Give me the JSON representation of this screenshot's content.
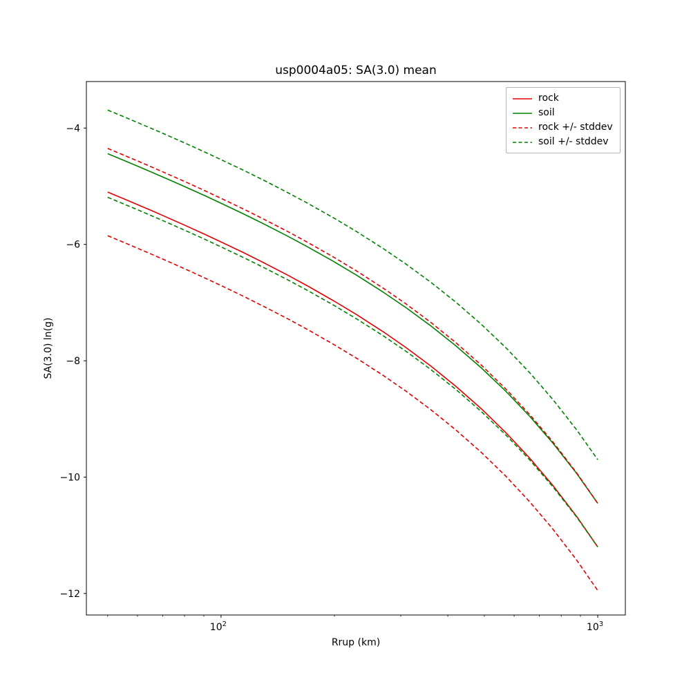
{
  "figure": {
    "title": "usp0004a05: SA(3.0) mean",
    "xlabel": "Rrup (km)",
    "ylabel": "SA(3.0) ln(g)"
  },
  "axes": {
    "y_ticks": [
      {
        "value": -4,
        "label": "−4"
      },
      {
        "value": -6,
        "label": "−6"
      },
      {
        "value": -8,
        "label": "−8"
      },
      {
        "value": -10,
        "label": "−10"
      },
      {
        "value": -12,
        "label": "−12"
      }
    ],
    "x_major_ticks": [
      {
        "value": 100,
        "mantissa": "10",
        "exponent": "2"
      },
      {
        "value": 1000,
        "mantissa": "10",
        "exponent": "3"
      }
    ],
    "x_minor_ticks": [
      50,
      60,
      70,
      80,
      90,
      200,
      300,
      400,
      500,
      600,
      700,
      800,
      900
    ]
  },
  "legend": {
    "entries": [
      {
        "label": "rock",
        "color": "#e00000",
        "dash": false
      },
      {
        "label": "soil",
        "color": "#008000",
        "dash": false
      },
      {
        "label": "rock +/- stddev",
        "color": "#e00000",
        "dash": true
      },
      {
        "label": "soil +/- stddev",
        "color": "#008000",
        "dash": true
      }
    ]
  },
  "chart_data": {
    "type": "line",
    "title": "usp0004a05: SA(3.0) mean",
    "xlabel": "Rrup (km)",
    "ylabel": "SA(3.0) ln(g)",
    "x_scale": "log",
    "xlim": [
      43.9,
      1184
    ],
    "ylim": [
      -12.37,
      -3.2
    ],
    "grid": false,
    "legend_position": "upper right",
    "x": [
      50,
      55,
      60,
      65,
      70,
      80,
      90,
      100,
      115,
      130,
      150,
      170,
      200,
      230,
      270,
      310,
      360,
      420,
      490,
      570,
      660,
      760,
      880,
      1000
    ],
    "stddev": 0.75,
    "series": [
      {
        "name": "rock",
        "color": "#e00000",
        "style": "solid",
        "values": [
          -5.1,
          -5.212,
          -5.315,
          -5.411,
          -5.502,
          -5.668,
          -5.819,
          -5.957,
          -6.145,
          -6.317,
          -6.525,
          -6.716,
          -6.977,
          -7.214,
          -7.505,
          -7.774,
          -8.087,
          -8.438,
          -8.82,
          -9.233,
          -9.674,
          -10.142,
          -10.68,
          -11.2
        ]
      },
      {
        "name": "soil",
        "color": "#008000",
        "style": "solid",
        "values": [
          -4.44,
          -4.551,
          -4.654,
          -4.75,
          -4.84,
          -5.005,
          -5.154,
          -5.292,
          -5.479,
          -5.649,
          -5.856,
          -6.044,
          -6.302,
          -6.537,
          -6.824,
          -7.089,
          -7.397,
          -7.742,
          -8.118,
          -8.523,
          -8.955,
          -9.414,
          -9.941,
          -10.45
        ]
      },
      {
        "name": "rock +/- stddev",
        "color": "#e00000",
        "style": "dashed",
        "derived_from": "rock",
        "offset": 0.75
      },
      {
        "name": "soil +/- stddev",
        "color": "#008000",
        "style": "dashed",
        "derived_from": "soil",
        "offset": 0.75
      }
    ]
  }
}
